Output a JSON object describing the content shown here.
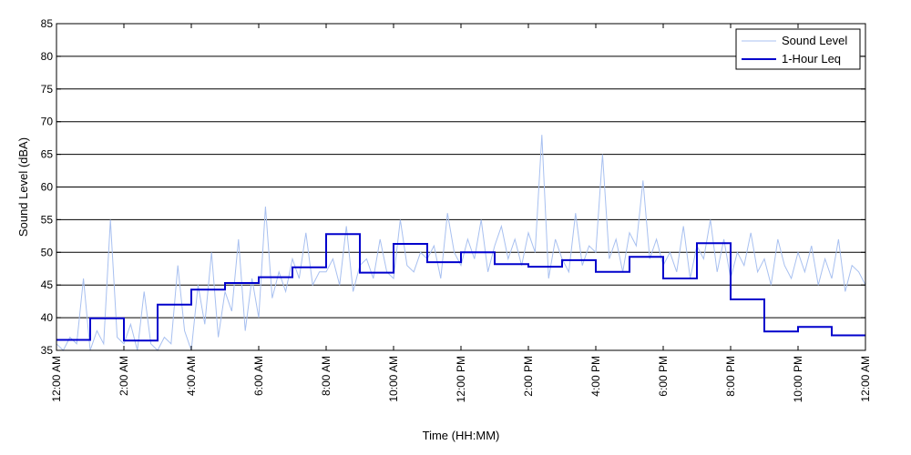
{
  "chart_data": {
    "type": "line",
    "title": "",
    "xlabel": "Time (HH:MM)",
    "ylabel": "Sound Level (dBA)",
    "xlim": [
      0,
      24
    ],
    "ylim": [
      35,
      85
    ],
    "grid": "horizontal",
    "legend_position": "top-right",
    "x_ticks": [
      0,
      2,
      4,
      6,
      8,
      10,
      12,
      14,
      16,
      18,
      20,
      22,
      24
    ],
    "x_tick_labels": [
      "12:00 AM",
      "2:00 AM",
      "4:00 AM",
      "6:00 AM",
      "8:00 AM",
      "10:00 AM",
      "12:00 PM",
      "2:00 PM",
      "4:00 PM",
      "6:00 PM",
      "8:00 PM",
      "10:00 PM",
      "12:00 AM"
    ],
    "y_ticks": [
      35,
      40,
      45,
      50,
      55,
      60,
      65,
      70,
      75,
      80,
      85
    ],
    "y_tick_labels": [
      "35",
      "40",
      "45",
      "50",
      "55",
      "60",
      "65",
      "70",
      "75",
      "80",
      "85"
    ],
    "series": [
      {
        "name": "Sound Level",
        "style": "thin-line",
        "color": "#a8c0f0",
        "x": [
          0,
          0.2,
          0.4,
          0.6,
          0.8,
          1,
          1.2,
          1.4,
          1.6,
          1.8,
          2,
          2.2,
          2.4,
          2.6,
          2.8,
          3,
          3.2,
          3.4,
          3.6,
          3.8,
          4,
          4.2,
          4.4,
          4.6,
          4.8,
          5,
          5.2,
          5.4,
          5.6,
          5.8,
          6,
          6.2,
          6.4,
          6.6,
          6.8,
          7,
          7.2,
          7.4,
          7.6,
          7.8,
          8,
          8.2,
          8.4,
          8.6,
          8.8,
          9,
          9.2,
          9.4,
          9.6,
          9.8,
          10,
          10.2,
          10.4,
          10.6,
          10.8,
          11,
          11.2,
          11.4,
          11.6,
          11.8,
          12,
          12.2,
          12.4,
          12.6,
          12.8,
          13,
          13.2,
          13.4,
          13.6,
          13.8,
          14,
          14.2,
          14.4,
          14.6,
          14.8,
          15,
          15.2,
          15.4,
          15.6,
          15.8,
          16,
          16.2,
          16.4,
          16.6,
          16.8,
          17,
          17.2,
          17.4,
          17.6,
          17.8,
          18,
          18.2,
          18.4,
          18.6,
          18.8,
          19,
          19.2,
          19.4,
          19.6,
          19.8,
          20,
          20.2,
          20.4,
          20.6,
          20.8,
          21,
          21.2,
          21.4,
          21.6,
          21.8,
          22,
          22.2,
          22.4,
          22.6,
          22.8,
          23,
          23.2,
          23.4,
          23.6,
          23.8,
          24
        ],
        "y": [
          36,
          35,
          37,
          36,
          46,
          35,
          38,
          36,
          55,
          37,
          36,
          39,
          35,
          44,
          36,
          35,
          37,
          36,
          48,
          38,
          35,
          45,
          39,
          50,
          37,
          44,
          41,
          52,
          38,
          46,
          40,
          57,
          43,
          47,
          44,
          49,
          46,
          53,
          45,
          47,
          47,
          49,
          45,
          54,
          44,
          48,
          49,
          46,
          52,
          47,
          46,
          55,
          48,
          47,
          50,
          49,
          51,
          46,
          56,
          50,
          48,
          52,
          49,
          55,
          47,
          51,
          54,
          49,
          52,
          48,
          53,
          50,
          68,
          46,
          52,
          49,
          47,
          56,
          48,
          51,
          50,
          65,
          49,
          52,
          47,
          53,
          51,
          61,
          49,
          52,
          48,
          50,
          47,
          54,
          46,
          51,
          49,
          55,
          47,
          52,
          46,
          50,
          48,
          53,
          47,
          49,
          45,
          52,
          48,
          46,
          50,
          47,
          51,
          45,
          49,
          46,
          52,
          44,
          48,
          47,
          45
        ],
        "y_extended": []
      },
      {
        "name": "1-Hour Leq",
        "style": "step",
        "color": "#0000cc",
        "x": [
          0,
          1,
          2,
          3,
          4,
          5,
          6,
          7,
          8,
          9,
          10,
          11,
          12,
          13,
          14,
          15,
          16,
          17,
          18,
          19,
          20,
          21,
          22,
          23,
          24
        ],
        "y": [
          36.6,
          39.9,
          36.5,
          42.0,
          44.3,
          45.3,
          46.2,
          47.7,
          52.8,
          46.9,
          51.3,
          48.5,
          50.0,
          48.2,
          47.8,
          48.8,
          47.0,
          49.3,
          46.0,
          51.4,
          42.8,
          37.9,
          38.6,
          37.3,
          37.3
        ]
      }
    ]
  }
}
